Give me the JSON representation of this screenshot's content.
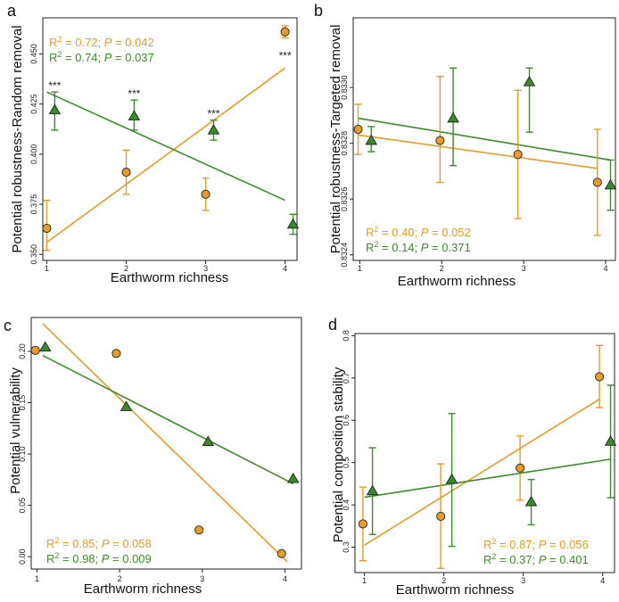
{
  "colors": {
    "orange": "#E89A2B",
    "green": "#3F8A2E",
    "dark": "#111111",
    "orange_fill": "#E89A2B",
    "green_fill": "#3B8A2A"
  },
  "chart_data": [
    {
      "panel": "a",
      "type": "scatter",
      "xlabel": "Earthworm richness",
      "ylabel": "Potential robustness-Random removal",
      "xlim": [
        0.95,
        4.15
      ],
      "ylim": [
        0.347,
        0.468
      ],
      "xticks": [
        1,
        2,
        3,
        4
      ],
      "yticks": [
        0.35,
        0.375,
        0.4,
        0.425,
        0.45
      ],
      "ytick_labels": [
        "0.350",
        "0.375",
        "0.400",
        "0.425",
        "0.450"
      ],
      "series": [
        {
          "name": "orange",
          "color": "orange",
          "marker": "circle",
          "points": [
            {
              "x": 1,
              "y": 0.363,
              "lo": 0.352,
              "hi": 0.377
            },
            {
              "x": 2,
              "y": 0.391,
              "lo": 0.38,
              "hi": 0.402
            },
            {
              "x": 3,
              "y": 0.38,
              "lo": 0.372,
              "hi": 0.388
            },
            {
              "x": 4,
              "y": 0.461,
              "lo": 0.458,
              "hi": 0.464
            }
          ],
          "fit": [
            [
              1,
              0.356
            ],
            [
              4,
              0.443
            ]
          ],
          "annotation": {
            "r2": "0.72",
            "p": "0.042"
          }
        },
        {
          "name": "green",
          "color": "green",
          "marker": "triangle",
          "points": [
            {
              "x": 1.1,
              "y": 0.422,
              "lo": 0.412,
              "hi": 0.431
            },
            {
              "x": 2.1,
              "y": 0.419,
              "lo": 0.412,
              "hi": 0.427
            },
            {
              "x": 3.1,
              "y": 0.412,
              "lo": 0.407,
              "hi": 0.417
            },
            {
              "x": 4.1,
              "y": 0.365,
              "lo": 0.36,
              "hi": 0.37
            }
          ],
          "fit": [
            [
              1,
              0.431
            ],
            [
              4,
              0.377
            ]
          ],
          "annotation": {
            "r2": "0.74",
            "p": "0.037"
          }
        }
      ],
      "significance": [
        {
          "x": 1.1,
          "y": 0.431,
          "label": "***"
        },
        {
          "x": 2.1,
          "y": 0.427,
          "label": "***"
        },
        {
          "x": 3.1,
          "y": 0.417,
          "label": "***"
        },
        {
          "x": 4.0,
          "y": 0.446,
          "label": "***"
        }
      ]
    },
    {
      "panel": "b",
      "type": "scatter",
      "xlabel": "Earthworm richness",
      "ylabel": "Potential robustness-Targeted removal",
      "xlim": [
        0.92,
        4.12
      ],
      "ylim": [
        0.83238,
        0.83325
      ],
      "xticks": [
        1,
        2,
        3,
        4
      ],
      "yticks": [
        0.8324,
        0.8326,
        0.8328,
        0.833
      ],
      "ytick_labels": [
        "0.8324",
        "0.8326",
        "0.8328",
        "0.8330"
      ],
      "series": [
        {
          "name": "orange",
          "color": "orange",
          "marker": "circle",
          "points": [
            {
              "x": 0.98,
              "y": 0.83285,
              "lo": 0.83276,
              "hi": 0.83294
            },
            {
              "x": 1.98,
              "y": 0.83281,
              "lo": 0.83266,
              "hi": 0.83304
            },
            {
              "x": 2.93,
              "y": 0.83276,
              "lo": 0.83253,
              "hi": 0.83299
            },
            {
              "x": 3.9,
              "y": 0.83266,
              "lo": 0.83247,
              "hi": 0.83285
            }
          ],
          "fit": [
            [
              0.98,
              0.83283
            ],
            [
              3.9,
              0.83271
            ]
          ],
          "annotation": {
            "r2": "0.40",
            "p": "0.052"
          }
        },
        {
          "name": "green",
          "color": "green",
          "marker": "triangle",
          "points": [
            {
              "x": 1.14,
              "y": 0.83281,
              "lo": 0.83277,
              "hi": 0.83286
            },
            {
              "x": 2.14,
              "y": 0.83289,
              "lo": 0.83272,
              "hi": 0.83307
            },
            {
              "x": 3.07,
              "y": 0.83302,
              "lo": 0.83284,
              "hi": 0.83307
            },
            {
              "x": 4.06,
              "y": 0.83265,
              "lo": 0.83256,
              "hi": 0.83274
            }
          ],
          "fit": [
            [
              0.98,
              0.83289
            ],
            [
              4.06,
              0.83274
            ]
          ],
          "annotation": {
            "r2": "0.14",
            "p": "0.371"
          }
        }
      ]
    },
    {
      "panel": "c",
      "type": "scatter",
      "xlabel": "Earthworm richness",
      "ylabel": "Potential vulnerability",
      "xlim": [
        0.93,
        4.2
      ],
      "ylim": [
        -0.012,
        0.233
      ],
      "xticks": [
        1,
        2,
        3,
        4
      ],
      "yticks": [
        0.0,
        0.05,
        0.1,
        0.15,
        0.2
      ],
      "ytick_labels": [
        "0.00",
        "0.05",
        "0.10",
        "0.15",
        "0.20"
      ],
      "series": [
        {
          "name": "orange",
          "color": "orange",
          "marker": "circle",
          "points": [
            {
              "x": 0.98,
              "y": 0.201
            },
            {
              "x": 1.96,
              "y": 0.198
            },
            {
              "x": 2.96,
              "y": 0.026
            },
            {
              "x": 3.96,
              "y": 0.003
            }
          ],
          "fit": [
            [
              1.07,
              0.227
            ],
            [
              4.03,
              -0.005
            ]
          ],
          "annotation": {
            "r2": "0.85",
            "p": "0.058"
          }
        },
        {
          "name": "green",
          "color": "green",
          "marker": "triangle",
          "points": [
            {
              "x": 1.1,
              "y": 0.204
            },
            {
              "x": 2.08,
              "y": 0.146
            },
            {
              "x": 3.07,
              "y": 0.112
            },
            {
              "x": 4.1,
              "y": 0.076
            }
          ],
          "fit": [
            [
              1.07,
              0.196
            ],
            [
              4.1,
              0.071
            ]
          ],
          "annotation": {
            "r2": "0.98",
            "p": "0.009"
          }
        }
      ]
    },
    {
      "panel": "d",
      "type": "scatter",
      "xlabel": "Earthworm richness",
      "ylabel": "Potential composition stability",
      "xlim": [
        0.88,
        4.15
      ],
      "ylim": [
        0.24,
        0.805
      ],
      "xticks": [
        1,
        2,
        3,
        4
      ],
      "yticks": [
        0.3,
        0.4,
        0.5,
        0.6,
        0.7,
        0.8
      ],
      "ytick_labels": [
        "0.3",
        "0.4",
        "0.5",
        "0.6",
        "0.7",
        "0.8"
      ],
      "series": [
        {
          "name": "orange",
          "color": "orange",
          "marker": "circle",
          "points": [
            {
              "x": 0.98,
              "y": 0.355,
              "lo": 0.268,
              "hi": 0.442
            },
            {
              "x": 1.96,
              "y": 0.373,
              "lo": 0.25,
              "hi": 0.497
            },
            {
              "x": 2.96,
              "y": 0.487,
              "lo": 0.411,
              "hi": 0.563
            },
            {
              "x": 3.96,
              "y": 0.703,
              "lo": 0.63,
              "hi": 0.777
            }
          ],
          "fit": [
            [
              1.0,
              0.305
            ],
            [
              3.96,
              0.65
            ]
          ],
          "annotation": {
            "r2": "0.87",
            "p": "0.056"
          }
        },
        {
          "name": "green",
          "color": "green",
          "marker": "triangle",
          "points": [
            {
              "x": 1.1,
              "y": 0.433,
              "lo": 0.33,
              "hi": 0.535
            },
            {
              "x": 2.1,
              "y": 0.46,
              "lo": 0.302,
              "hi": 0.616
            },
            {
              "x": 3.1,
              "y": 0.407,
              "lo": 0.353,
              "hi": 0.46
            },
            {
              "x": 4.1,
              "y": 0.55,
              "lo": 0.417,
              "hi": 0.683
            }
          ],
          "fit": [
            [
              1.0,
              0.418
            ],
            [
              4.1,
              0.508
            ]
          ],
          "annotation": {
            "r2": "0.37",
            "p": "0.401"
          }
        }
      ]
    }
  ]
}
